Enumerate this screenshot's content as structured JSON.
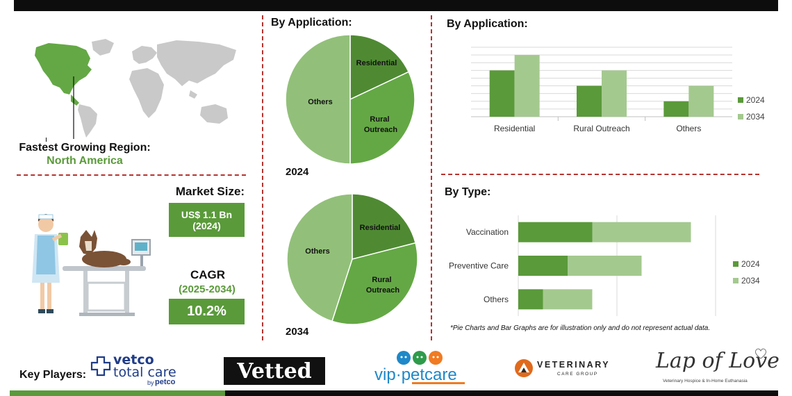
{
  "left": {
    "region_label": "Fastest Growing Region:",
    "region_value": "North America",
    "market_size_label": "Market Size:",
    "market_size_value": "US$ 1.1 Bn",
    "market_size_year": "(2024)",
    "cagr_label": "CAGR",
    "cagr_period": "(2025-2034)",
    "cagr_value": "10.2%"
  },
  "pies": {
    "title": "By Application:",
    "pie_2024": {
      "year": "2024",
      "slices": [
        {
          "label": "Residential",
          "share": 0.18,
          "color": "#4f8a33"
        },
        {
          "label": "Rural Outreach",
          "share": 0.32,
          "color": "#64a845"
        },
        {
          "label": "Others",
          "share": 0.5,
          "color": "#92c07a"
        }
      ]
    },
    "pie_2034": {
      "year": "2034",
      "slices": [
        {
          "label": "Residential",
          "share": 0.21,
          "color": "#4f8a33"
        },
        {
          "label": "Rural Outreach",
          "share": 0.34,
          "color": "#64a845"
        },
        {
          "label": "Others",
          "share": 0.45,
          "color": "#92c07a"
        }
      ]
    }
  },
  "chart_data": [
    {
      "type": "bar",
      "title": "By Application:",
      "categories": [
        "Residential",
        "Rural Outreach",
        "Others"
      ],
      "series": [
        {
          "name": "2024",
          "values": [
            6,
            4,
            2
          ],
          "color": "#5a9a3a"
        },
        {
          "name": "2034",
          "values": [
            8,
            6,
            4
          ],
          "color": "#a4c98f"
        }
      ],
      "ylim": [
        0,
        9
      ],
      "grid": true,
      "legend": "right"
    },
    {
      "type": "bar",
      "orientation": "horizontal",
      "title": "By Type:",
      "categories": [
        "Vaccination",
        "Preventive Care",
        "Others"
      ],
      "series": [
        {
          "name": "2024",
          "values": [
            3,
            2,
            1
          ],
          "color": "#5a9a3a"
        },
        {
          "name": "2034",
          "values": [
            4,
            3,
            2
          ],
          "color": "#a4c98f"
        }
      ],
      "stacked": true,
      "xlim": [
        0,
        8
      ],
      "grid": true,
      "legend": "right"
    }
  ],
  "note": "*Pie Charts and Bar Graphs are for illustration only and do not represent actual data.",
  "key_players": {
    "label": "Key Players:",
    "vetco": {
      "line1": "vetco",
      "line2": "total care",
      "by": "by",
      "brand": "petco"
    },
    "vetted": "Vetted",
    "vip": {
      "part1": "vip",
      "dot": "·",
      "part2": "petcare"
    },
    "vcg": {
      "line1": "VETERINARY",
      "line2": "CARE GROUP"
    },
    "lap": {
      "main": "Lap of Love",
      "sub": "Veterinary Hospice & In-Home Euthanasia"
    }
  }
}
